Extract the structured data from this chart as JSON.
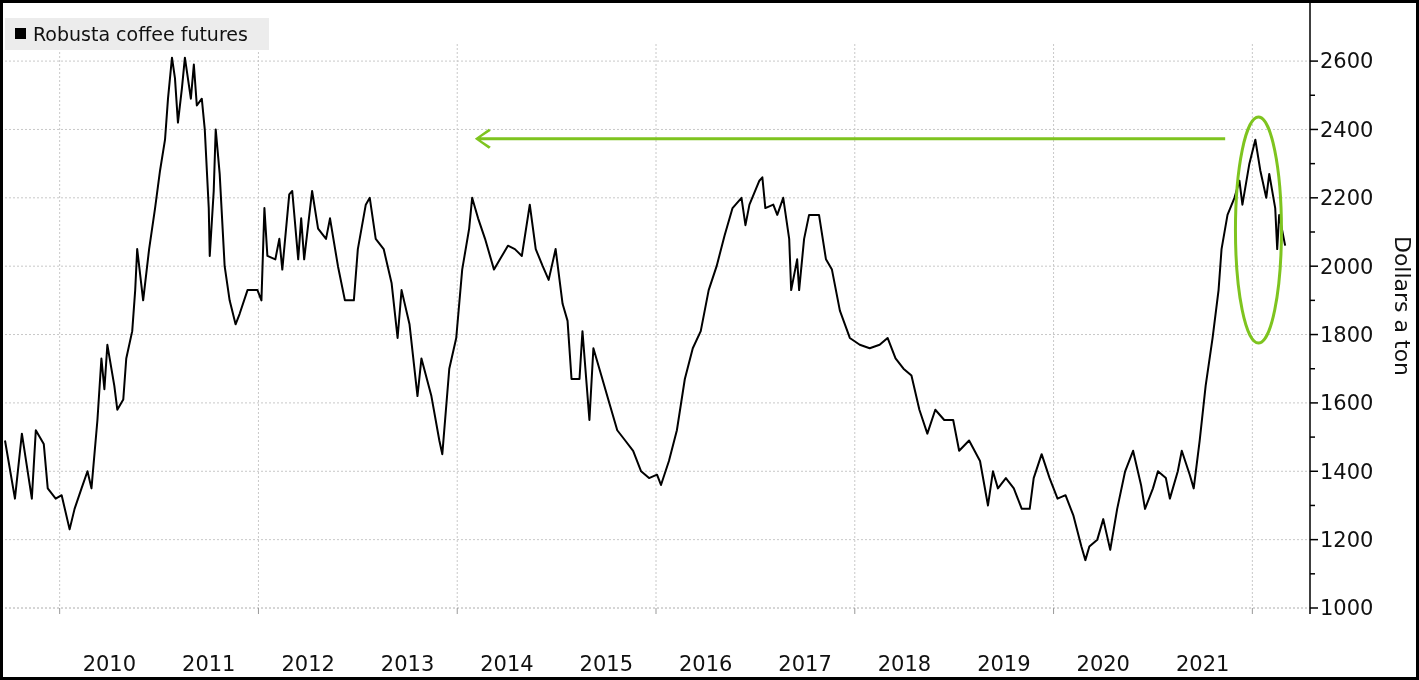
{
  "chart_data": {
    "type": "line",
    "ylabel": "Dollars a ton",
    "legend": "top left",
    "grid": true,
    "xlim": [
      2009.45,
      2022.58
    ],
    "ylim": [
      1000,
      2650
    ],
    "xticks": [
      {
        "value": 2010,
        "label": null
      },
      {
        "value": 2010.5,
        "label": "2010"
      },
      {
        "value": 2011.5,
        "label": "2011"
      },
      {
        "value": 2012,
        "label": null
      },
      {
        "value": 2012.5,
        "label": "2012"
      },
      {
        "value": 2013.5,
        "label": "2013"
      },
      {
        "value": 2014,
        "label": null
      },
      {
        "value": 2014.5,
        "label": "2014"
      },
      {
        "value": 2015.5,
        "label": "2015"
      },
      {
        "value": 2016,
        "label": null
      },
      {
        "value": 2016.5,
        "label": "2016"
      },
      {
        "value": 2017.5,
        "label": "2017"
      },
      {
        "value": 2018,
        "label": null
      },
      {
        "value": 2018.5,
        "label": "2018"
      },
      {
        "value": 2019.5,
        "label": "2019"
      },
      {
        "value": 2020,
        "label": null
      },
      {
        "value": 2020.5,
        "label": "2020"
      },
      {
        "value": 2021.5,
        "label": "2021"
      },
      {
        "value": 2022,
        "label": null
      }
    ],
    "yticks": [
      1000,
      {
        "value": 1100,
        "label": null
      },
      1200,
      {
        "value": 1300,
        "label": null
      },
      1400,
      {
        "value": 1500,
        "label": null
      },
      1600,
      {
        "value": 1700,
        "label": null
      },
      1800,
      {
        "value": 1900,
        "label": null
      },
      2000,
      {
        "value": 2100,
        "label": null
      },
      2200,
      {
        "value": 2300,
        "label": null
      },
      2400,
      {
        "value": 2500,
        "label": null
      },
      2600
    ],
    "series": [
      {
        "name": "Robusta coffee futures",
        "color": "#000000",
        "x": [
          2009.45,
          2009.55,
          2009.62,
          2009.72,
          2009.76,
          2009.84,
          2009.88,
          2009.96,
          2010.02,
          2010.1,
          2010.15,
          2010.22,
          2010.28,
          2010.32,
          2010.38,
          2010.42,
          2010.45,
          2010.48,
          2010.55,
          2010.58,
          2010.64,
          2010.67,
          2010.73,
          2010.76,
          2010.78,
          2010.84,
          2010.9,
          2010.96,
          2011.01,
          2011.06,
          2011.09,
          2011.13,
          2011.16,
          2011.19,
          2011.23,
          2011.26,
          2011.32,
          2011.35,
          2011.38,
          2011.43,
          2011.46,
          2011.5,
          2011.51,
          2011.55,
          2011.57,
          2011.61,
          2011.66,
          2011.71,
          2011.77,
          2011.81,
          2011.89,
          2011.99,
          2012.03,
          2012.06,
          2012.09,
          2012.17,
          2012.21,
          2012.24,
          2012.31,
          2012.34,
          2012.4,
          2012.43,
          2012.46,
          2012.54,
          2012.6,
          2012.68,
          2012.72,
          2012.8,
          2012.87,
          2012.96,
          2013.0,
          2013.08,
          2013.12,
          2013.18,
          2013.26,
          2013.34,
          2013.4,
          2013.44,
          2013.52,
          2013.6,
          2013.64,
          2013.74,
          2013.82,
          2013.85,
          2013.92,
          2013.99,
          2014.05,
          2014.12,
          2014.15,
          2014.21,
          2014.28,
          2014.37,
          2014.43,
          2014.51,
          2014.58,
          2014.65,
          2014.73,
          2014.79,
          2014.86,
          2014.92,
          2014.99,
          2015.06,
          2015.11,
          2015.15,
          2015.23,
          2015.26,
          2015.33,
          2015.37,
          2015.45,
          2015.53,
          2015.61,
          2015.69,
          2015.77,
          2015.85,
          2015.93,
          2016.01,
          2016.05,
          2016.13,
          2016.21,
          2016.29,
          2016.37,
          2016.45,
          2016.53,
          2016.61,
          2016.69,
          2016.77,
          2016.86,
          2016.9,
          2016.94,
          2017.04,
          2017.07,
          2017.1,
          2017.18,
          2017.22,
          2017.28,
          2017.34,
          2017.36,
          2017.42,
          2017.44,
          2017.49,
          2017.54,
          2017.64,
          2017.71,
          2017.77,
          2017.85,
          2017.95,
          2018.05,
          2018.15,
          2018.25,
          2018.33,
          2018.41,
          2018.49,
          2018.57,
          2018.65,
          2018.73,
          2018.81,
          2018.9,
          2018.99,
          2019.05,
          2019.15,
          2019.26,
          2019.34,
          2019.39,
          2019.44,
          2019.52,
          2019.6,
          2019.68,
          2019.76,
          2019.8,
          2019.88,
          2019.96,
          2020.04,
          2020.12,
          2020.2,
          2020.28,
          2020.32,
          2020.36,
          2020.44,
          2020.5,
          2020.57,
          2020.64,
          2020.72,
          2020.8,
          2020.88,
          2020.92,
          2021.0,
          2021.05,
          2021.13,
          2021.17,
          2021.25,
          2021.29,
          2021.37,
          2021.41,
          2021.47,
          2021.53,
          2021.6,
          2021.66,
          2021.69,
          2021.75,
          2021.82,
          2021.87,
          2021.9,
          2021.97,
          2022.03,
          2022.08,
          2022.14,
          2022.17,
          2022.23,
          2022.25,
          2022.27,
          2022.33
        ],
        "values": [
          1490,
          1320,
          1510,
          1320,
          1520,
          1480,
          1350,
          1320,
          1330,
          1230,
          1290,
          1350,
          1400,
          1350,
          1550,
          1730,
          1640,
          1770,
          1650,
          1580,
          1610,
          1730,
          1810,
          1930,
          2050,
          1900,
          2050,
          2170,
          2280,
          2370,
          2490,
          2610,
          2550,
          2420,
          2520,
          2610,
          2490,
          2590,
          2470,
          2490,
          2400,
          2170,
          2030,
          2220,
          2400,
          2270,
          2000,
          1900,
          1830,
          1860,
          1930,
          1930,
          1900,
          2170,
          2030,
          2020,
          2080,
          1990,
          2210,
          2220,
          2020,
          2140,
          2020,
          2220,
          2110,
          2080,
          2140,
          2000,
          1900,
          1900,
          2050,
          2180,
          2200,
          2080,
          2050,
          1950,
          1790,
          1930,
          1830,
          1620,
          1730,
          1620,
          1490,
          1450,
          1700,
          1790,
          1990,
          2110,
          2200,
          2140,
          2080,
          1990,
          2020,
          2060,
          2050,
          2030,
          2180,
          2050,
          2000,
          1960,
          2050,
          1890,
          1840,
          1670,
          1670,
          1810,
          1550,
          1760,
          1680,
          1600,
          1520,
          1490,
          1460,
          1400,
          1380,
          1390,
          1360,
          1430,
          1520,
          1670,
          1760,
          1810,
          1930,
          2000,
          2090,
          2170,
          2200,
          2120,
          2180,
          2250,
          2260,
          2170,
          2180,
          2150,
          2200,
          2080,
          1930,
          2020,
          1930,
          2080,
          2150,
          2150,
          2020,
          1990,
          1870,
          1790,
          1770,
          1760,
          1770,
          1790,
          1730,
          1700,
          1680,
          1580,
          1510,
          1580,
          1550,
          1550,
          1460,
          1490,
          1430,
          1300,
          1400,
          1350,
          1380,
          1350,
          1290,
          1290,
          1380,
          1450,
          1380,
          1320,
          1330,
          1270,
          1180,
          1140,
          1180,
          1200,
          1260,
          1170,
          1290,
          1400,
          1460,
          1360,
          1290,
          1350,
          1400,
          1380,
          1320,
          1400,
          1460,
          1390,
          1350,
          1490,
          1650,
          1790,
          1930,
          2050,
          2150,
          2200,
          2250,
          2180,
          2300,
          2370,
          2280,
          2200,
          2270,
          2170,
          2050,
          2150,
          2060
        ]
      }
    ]
  }
}
